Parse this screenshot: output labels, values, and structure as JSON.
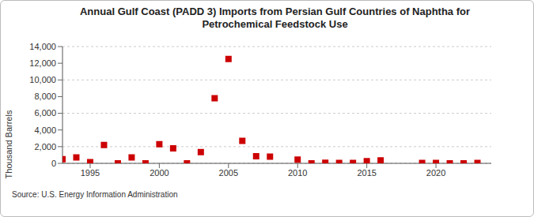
{
  "chart_data": {
    "type": "scatter",
    "title": "Annual Gulf Coast (PADD 3) Imports from Persian Gulf Countries of Naphtha for Petrochemical Feedstock Use",
    "y_label": "Thousand Barrels",
    "source": "Source: U.S. Energy Information Administration",
    "x": [
      1993,
      1994,
      1995,
      1996,
      1997,
      1998,
      1999,
      2000,
      2001,
      2002,
      2003,
      2004,
      2005,
      2006,
      2007,
      2008,
      2010,
      2011,
      2012,
      2013,
      2014,
      2015,
      2016,
      2019,
      2020,
      2021,
      2022,
      2023
    ],
    "values": [
      500,
      700,
      150,
      2200,
      0,
      700,
      0,
      2300,
      1800,
      0,
      1350,
      7800,
      12500,
      2700,
      850,
      800,
      450,
      0,
      80,
      50,
      50,
      250,
      350,
      50,
      50,
      0,
      0,
      50
    ],
    "color": "#cc0000",
    "marker": "square",
    "xlim": [
      1993,
      2024
    ],
    "xticks": [
      1995,
      2000,
      2005,
      2010,
      2015,
      2020
    ],
    "ylim": [
      0,
      14000
    ],
    "yticks": [
      0,
      {
        "value": 2000,
        "label": "2,000"
      },
      {
        "value": 4000,
        "label": "4,000"
      },
      {
        "value": 6000,
        "label": "6,000"
      },
      {
        "value": 8000,
        "label": "8,000"
      },
      {
        "value": 10000,
        "label": "10,000"
      },
      {
        "value": 12000,
        "label": "12,000"
      },
      {
        "value": 14000,
        "label": "14,000"
      }
    ],
    "grid": true
  }
}
